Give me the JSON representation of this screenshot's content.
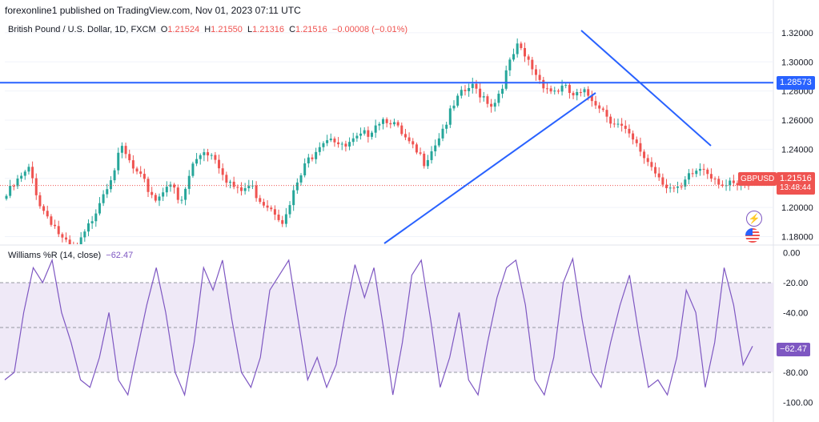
{
  "header": {
    "publisher": "forexonline1 published on TradingView.com, Nov 01, 2023 07:11 UTC"
  },
  "legend": {
    "symbol": "British Pound / U.S. Dollar, 1D, FXCM",
    "o_key": "O",
    "o_val": "1.21524",
    "h_key": "H",
    "h_val": "1.21550",
    "l_key": "L",
    "l_val": "1.21316",
    "c_key": "C",
    "c_val": "1.21516",
    "change": "−0.00008 (−0.01%)"
  },
  "indicator": {
    "name": "Williams %R (14, close)",
    "value": "−62.47"
  },
  "badges": {
    "hline_price": "1.28573",
    "symbol": "GBPUSD",
    "last_price": "1.21516",
    "countdown": "13:48:44",
    "wr_value": "−62.47"
  },
  "colors": {
    "up": "#26a69a",
    "down": "#ef5350",
    "trendline": "#2962ff",
    "hline": "#2962ff",
    "wr_line": "#7e57c2",
    "wr_band": "#ede7f6"
  },
  "icons": [
    "lightning-icon",
    "us-flag-icon"
  ],
  "chart_data": [
    {
      "type": "candlestick",
      "ylim": [
        1.1748,
        1.3271
      ],
      "y_ticks": [
        "1.32000",
        "1.30000",
        "1.28000",
        "1.26000",
        "1.24000",
        "1.22000",
        "1.20000",
        "1.18000"
      ],
      "y_tick_values": [
        1.32,
        1.3,
        1.28,
        1.26,
        1.24,
        1.22,
        1.2,
        1.18
      ],
      "horizontal_line": 1.28573,
      "last_price": 1.21516,
      "key_closes": [
        1.208,
        1.218,
        1.226,
        1.2,
        1.19,
        1.175,
        1.17,
        1.185,
        1.205,
        1.222,
        1.24,
        1.225,
        1.215,
        1.205,
        1.22,
        1.2,
        1.228,
        1.24,
        1.235,
        1.22,
        1.21,
        1.215,
        1.205,
        1.2,
        1.19,
        1.215,
        1.232,
        1.245,
        1.25,
        1.24,
        1.245,
        1.25,
        1.26,
        1.262,
        1.25,
        1.24,
        1.232,
        1.245,
        1.26,
        1.275,
        1.283,
        1.278,
        1.27,
        1.29,
        1.31,
        1.3,
        1.288,
        1.28,
        1.282,
        1.276,
        1.278,
        1.272,
        1.262,
        1.255,
        1.245,
        1.235,
        1.225,
        1.215,
        1.21,
        1.222,
        1.228,
        1.222,
        1.215,
        1.214,
        1.215
      ]
    },
    {
      "type": "line",
      "name": "Williams %R (14, close)",
      "ylim": [
        -103,
        3
      ],
      "y_ticks": [
        "0.00",
        "-20.00",
        "-40.00",
        "-80.00",
        "-100.00"
      ],
      "y_tick_values": [
        0,
        -20,
        -40,
        -80,
        -100
      ],
      "bands": [
        -20,
        -80
      ],
      "last_value": -62.47,
      "values": [
        -85,
        -80,
        -40,
        -10,
        -20,
        -5,
        -40,
        -60,
        -85,
        -90,
        -70,
        -40,
        -85,
        -95,
        -65,
        -35,
        -10,
        -40,
        -80,
        -95,
        -60,
        -10,
        -25,
        -5,
        -45,
        -80,
        -90,
        -70,
        -25,
        -15,
        -5,
        -45,
        -85,
        -70,
        -90,
        -75,
        -40,
        -8,
        -30,
        -10,
        -50,
        -95,
        -60,
        -15,
        -5,
        -45,
        -90,
        -70,
        -40,
        -85,
        -95,
        -60,
        -30,
        -10,
        -5,
        -35,
        -85,
        -95,
        -70,
        -20,
        -4,
        -45,
        -80,
        -90,
        -60,
        -35,
        -15,
        -55,
        -90,
        -85,
        -95,
        -70,
        -25,
        -40,
        -90,
        -60,
        -10,
        -35,
        -75,
        -62.47
      ]
    }
  ]
}
